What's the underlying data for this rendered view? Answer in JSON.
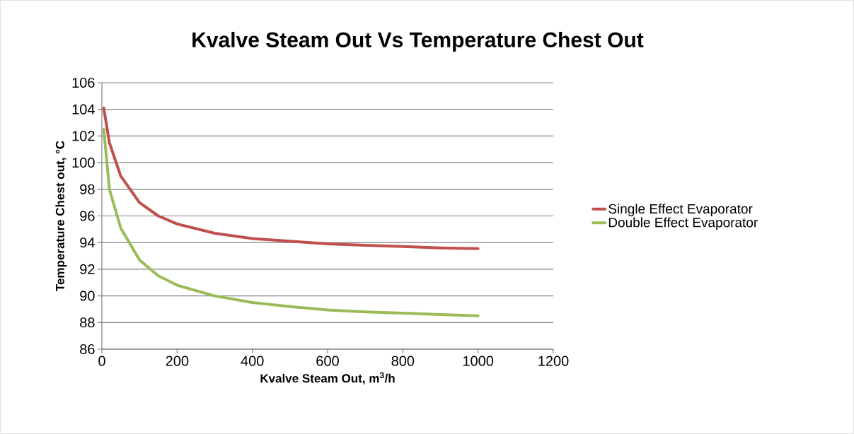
{
  "chart_data": {
    "type": "line",
    "title": "Kvalve Steam Out Vs Temperature Chest Out",
    "xlabel": "Kvalve Steam Out, m$^{3}$/h",
    "ylabel": "Temperature Chest out, °C",
    "xlim": [
      0,
      1200
    ],
    "xticks": [
      0,
      200,
      400,
      600,
      800,
      1000,
      1200
    ],
    "ylim": [
      86,
      106
    ],
    "yticks": [
      86,
      88,
      90,
      92,
      94,
      96,
      98,
      100,
      102,
      104,
      106
    ],
    "grid": "y",
    "legend": "right",
    "marker": "none",
    "line_style": "solid",
    "series": [
      {
        "name": "Single Effect Evaporator",
        "color": "#c0504d",
        "x": [
          5,
          20,
          50,
          100,
          150,
          200,
          300,
          400,
          500,
          600,
          700,
          800,
          900,
          1000
        ],
        "values": [
          104.1,
          101.5,
          99.0,
          97.0,
          96.0,
          95.4,
          94.7,
          94.3,
          94.1,
          93.9,
          93.8,
          93.7,
          93.6,
          93.55
        ]
      },
      {
        "name": "Double Effect Evaporator",
        "color": "#9bbb59",
        "x": [
          5,
          20,
          50,
          100,
          150,
          200,
          300,
          400,
          500,
          600,
          700,
          800,
          900,
          1000
        ],
        "values": [
          102.5,
          98.0,
          95.1,
          92.7,
          91.5,
          90.8,
          90.0,
          89.5,
          89.2,
          88.95,
          88.8,
          88.7,
          88.6,
          88.5
        ]
      }
    ]
  }
}
